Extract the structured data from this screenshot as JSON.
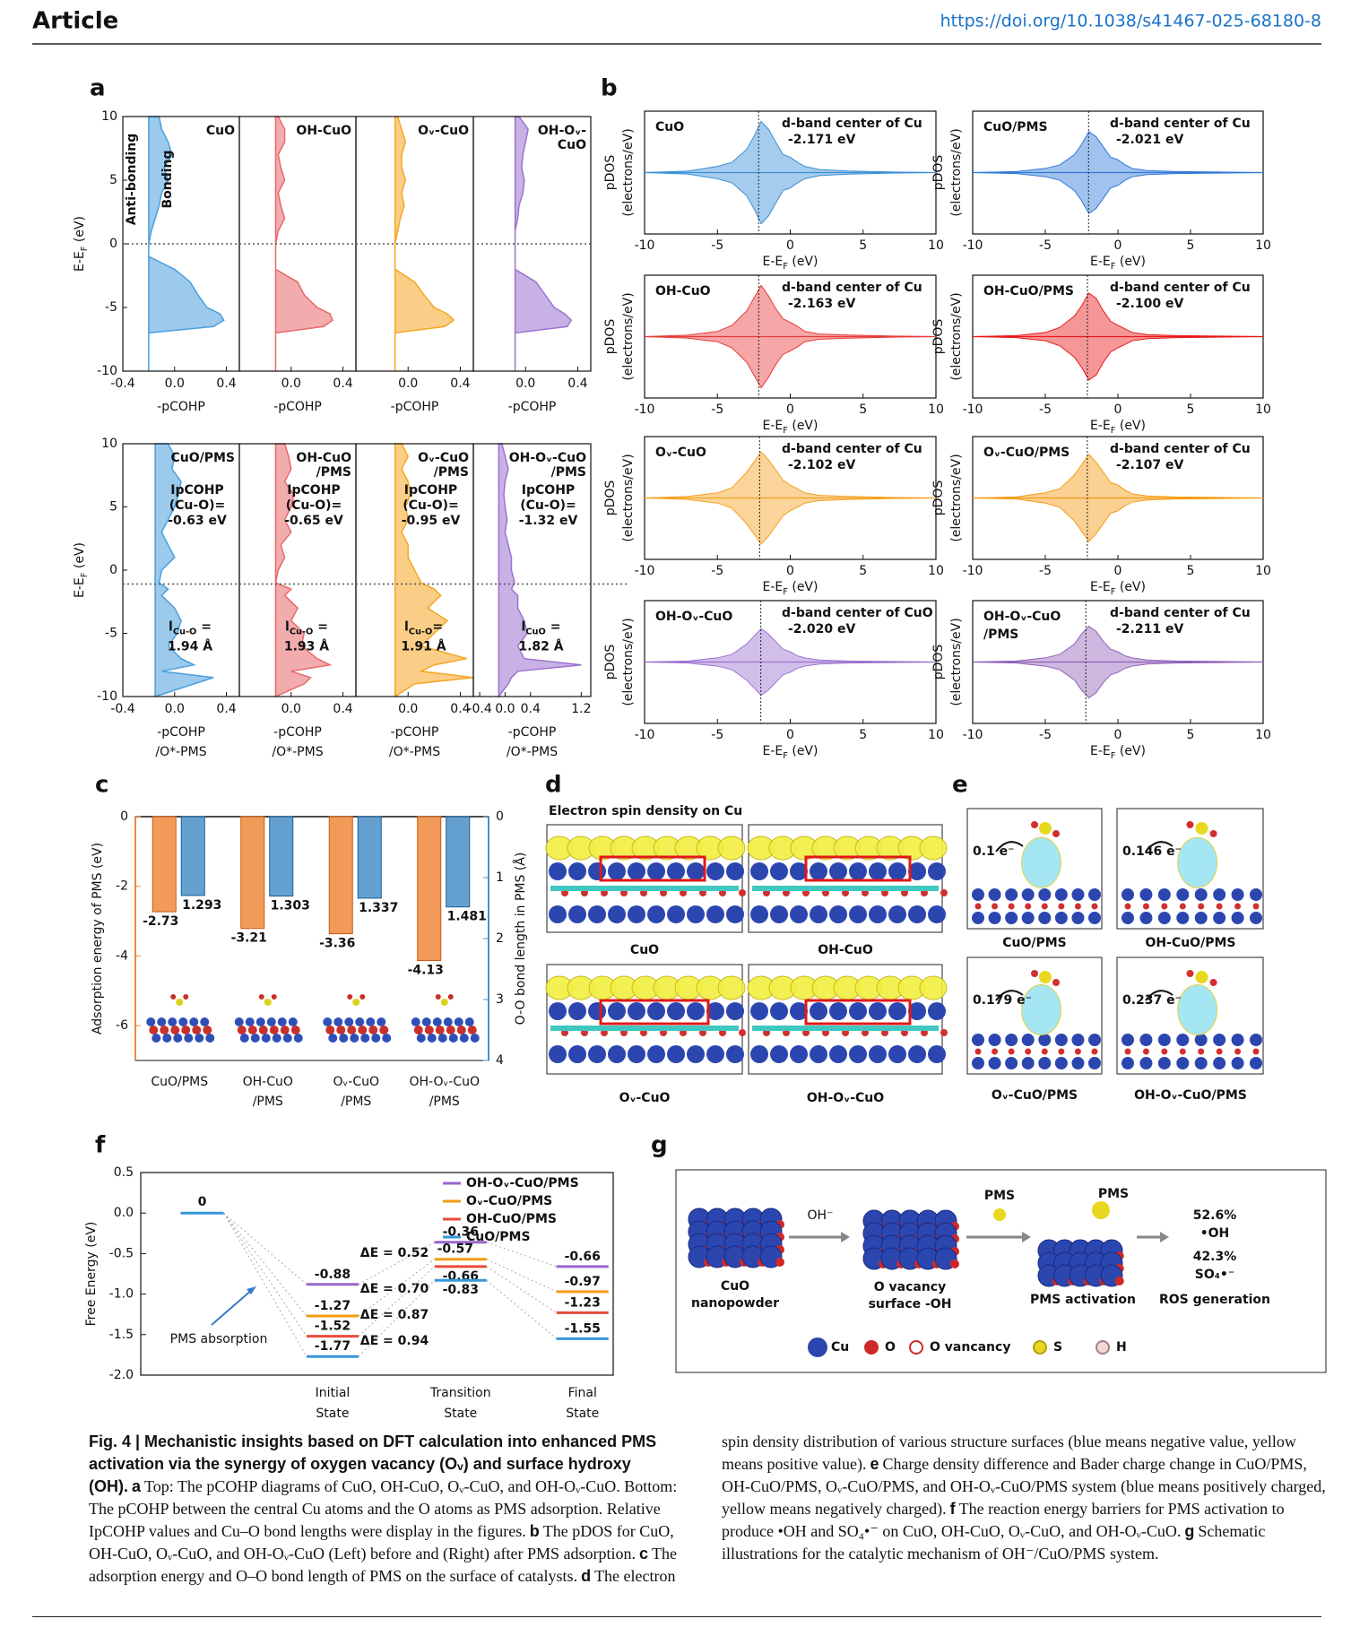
{
  "header": {
    "label": "Article",
    "doi": "https://doi.org/10.1038/s41467-025-68180-8"
  },
  "panel_labels": [
    "a",
    "b",
    "c",
    "d",
    "e",
    "f",
    "g"
  ],
  "chart_data": [
    {
      "type": "pcohp",
      "ylabel": {
        "text": "E-E",
        "sub": "F",
        "unit": " (eV)"
      },
      "ylim": [
        -10,
        10
      ],
      "yticks": [
        -10,
        -5,
        0,
        5,
        10
      ],
      "xlim": [
        -0.4,
        0.5
      ],
      "fermi": 0,
      "annotations": [
        "Anti-bonding",
        "Bonding"
      ],
      "y": [
        10,
        9,
        8,
        7,
        6,
        5,
        4,
        3,
        2,
        1,
        0,
        -1,
        -2,
        -3,
        -4,
        -5,
        -5.5,
        -6,
        -6.5,
        -7,
        -8,
        -9,
        -10
      ],
      "panels": [
        {
          "label": [
            "CuO"
          ],
          "color": "#4a9fdc",
          "xticks": [
            -0.4,
            {
              "value": 0,
              "label": "0.0"
            },
            0.4
          ],
          "xlabel": [
            "-pCOHP"
          ],
          "values": [
            -0.12,
            -0.1,
            -0.05,
            -0.02,
            -0.08,
            -0.05,
            -0.1,
            -0.12,
            -0.15,
            -0.18,
            -0.2,
            -0.2,
            0.0,
            0.12,
            0.18,
            0.25,
            0.35,
            0.38,
            0.3,
            -0.2,
            -0.2,
            -0.2,
            -0.2
          ]
        },
        {
          "label": [
            "OH-CuO"
          ],
          "color": "#e8686c",
          "xticks": [
            {
              "value": 0,
              "label": "0.0"
            },
            0.4
          ],
          "xlabel": [
            "-pCOHP"
          ],
          "values": [
            -0.1,
            -0.05,
            -0.05,
            -0.1,
            -0.08,
            -0.05,
            -0.1,
            -0.08,
            -0.05,
            -0.1,
            -0.12,
            -0.12,
            -0.12,
            0.05,
            0.1,
            0.2,
            0.3,
            0.32,
            0.25,
            -0.12,
            -0.12,
            -0.12,
            -0.12
          ]
        },
        {
          "label": [
            "Oᵥ-CuO"
          ],
          "color": "#f5a623",
          "xticks": [
            {
              "value": 0,
              "label": "0.0"
            },
            0.4
          ],
          "xlabel": [
            "-pCOHP"
          ],
          "values": [
            -0.08,
            -0.05,
            -0.02,
            -0.05,
            -0.05,
            -0.02,
            -0.05,
            -0.03,
            -0.06,
            -0.08,
            -0.1,
            -0.1,
            -0.1,
            0.05,
            0.12,
            0.2,
            0.3,
            0.35,
            0.28,
            -0.1,
            -0.1,
            -0.1,
            -0.1
          ]
        },
        {
          "label": [
            "OH-Oᵥ-",
            "CuO"
          ],
          "color": "#9b72cf",
          "xticks": [
            {
              "value": 0,
              "label": "0.0"
            },
            0.4
          ],
          "xlabel": [
            "-pCOHP"
          ],
          "values": [
            -0.05,
            0.02,
            0.0,
            -0.02,
            -0.03,
            -0.01,
            -0.02,
            -0.05,
            -0.06,
            -0.08,
            -0.08,
            -0.08,
            -0.08,
            0.08,
            0.15,
            0.22,
            0.3,
            0.35,
            0.32,
            -0.08,
            -0.08,
            -0.08,
            -0.08
          ]
        }
      ]
    },
    {
      "type": "pcohp",
      "ylabel": {
        "text": "E-E",
        "sub": "F",
        "unit": " (eV)"
      },
      "ylim": [
        -10,
        10
      ],
      "yticks": [
        -10,
        -5,
        0,
        5,
        10
      ],
      "xlim": [
        -0.4,
        0.5
      ],
      "fermi": -1.1,
      "y": [
        10,
        9,
        8,
        7,
        6,
        5,
        4,
        3,
        2,
        1,
        0,
        -1,
        -1.5,
        -2,
        -3,
        -4,
        -5,
        -6,
        -7,
        -7.5,
        -8,
        -8.5,
        -9,
        -10
      ],
      "panels": [
        {
          "label": [
            "CuO/PMS"
          ],
          "color": "#4a9fdc",
          "xticks": [
            -0.4,
            {
              "value": 0,
              "label": "0.0"
            },
            0.4
          ],
          "xlabel": [
            "-pCOHP",
            "/O*-PMS"
          ],
          "ipcohp_label": [
            "IpCOHP",
            "(Cu-O)="
          ],
          "ipcohp": -0.63,
          "ipcohp_value_label": "-0.63 eV",
          "bond_label": {
            "text": "l",
            "sub": "Cu-O",
            "unit": " ="
          },
          "bond": 1.94,
          "bond_value_label": "1.94 Å",
          "values": [
            -0.05,
            0.0,
            -0.02,
            0.05,
            0.03,
            0.0,
            -0.05,
            -0.1,
            -0.05,
            0.0,
            -0.1,
            -0.12,
            -0.05,
            -0.1,
            0.0,
            0.05,
            0.02,
            -0.05,
            0.05,
            0.15,
            -0.1,
            0.3,
            0.15,
            -0.15
          ]
        },
        {
          "label": [
            "OH-CuO",
            "/PMS"
          ],
          "color": "#e8686c",
          "xticks": [
            {
              "value": 0,
              "label": "0.0"
            },
            0.4
          ],
          "xlabel": [
            "-pCOHP",
            "/O*-PMS"
          ],
          "ipcohp_label": [
            "IpCOHP",
            "(Cu-O)="
          ],
          "ipcohp": -0.65,
          "ipcohp_value_label": "-0.65 eV",
          "bond_label": {
            "text": "l",
            "sub": "Cu-O",
            "unit": " ="
          },
          "bond": 1.93,
          "bond_value_label": "1.93 Å",
          "values": [
            -0.05,
            -0.02,
            0.0,
            -0.05,
            0.02,
            0.0,
            -0.05,
            0.0,
            -0.08,
            -0.05,
            -0.1,
            -0.12,
            0.0,
            -0.05,
            0.05,
            0.0,
            0.1,
            0.08,
            0.2,
            0.3,
            0.0,
            0.15,
            0.1,
            -0.12
          ]
        },
        {
          "label": [
            "Oᵥ-CuO",
            "/PMS"
          ],
          "color": "#f5a623",
          "xticks": [
            {
              "value": 0,
              "label": "0.0"
            },
            0.4
          ],
          "xlabel": [
            "-pCOHP",
            "/O*-PMS"
          ],
          "ipcohp_label": [
            "IpCOHP",
            "(Cu-O)="
          ],
          "ipcohp": -0.95,
          "ipcohp_value_label": "-0.95 eV",
          "bond_label": {
            "text": "l",
            "sub": "Cu-O",
            "unit": "="
          },
          "bond": 1.91,
          "bond_value_label": "1.91 Å",
          "values": [
            -0.05,
            0.0,
            -0.05,
            0.0,
            0.02,
            -0.02,
            0.0,
            -0.05,
            0.0,
            0.0,
            0.05,
            0.1,
            0.2,
            0.25,
            0.15,
            0.3,
            0.2,
            0.1,
            0.45,
            0.2,
            0.1,
            0.5,
            0.05,
            -0.1
          ]
        },
        {
          "label": [
            "OH-Oᵥ-CuO",
            "/PMS"
          ],
          "color": "#9b72cf",
          "xlim": [
            -0.5,
            1.35
          ],
          "xticks": [
            -0.4,
            {
              "value": 0,
              "label": "0.0"
            },
            0.4,
            1.2
          ],
          "xlabel": [
            "-pCOHP",
            "/O*-PMS"
          ],
          "ipcohp_label": [
            "IpCOHP",
            "(Cu-O)="
          ],
          "ipcohp": -1.32,
          "ipcohp_value_label": "-1.32 eV",
          "bond_label": {
            "text": "l",
            "sub": "CuO",
            "unit": " ="
          },
          "bond": 1.82,
          "bond_value_label": "1.82 Å",
          "values": [
            -0.05,
            0.0,
            0.05,
            0.0,
            -0.02,
            0.0,
            0.03,
            0.0,
            0.05,
            0.1,
            0.1,
            0.15,
            0.1,
            0.2,
            0.2,
            0.3,
            0.35,
            0.2,
            0.3,
            1.2,
            0.2,
            0.1,
            0.05,
            -0.1
          ]
        }
      ]
    },
    {
      "type": "pdos",
      "xlim": [
        -10,
        10
      ],
      "xticks": [
        -10,
        -5,
        0,
        5,
        10
      ],
      "ylim": [
        -1.2,
        1.2
      ],
      "ylabel": [
        "pDOS",
        "(electrons/eV)"
      ],
      "xlabel": {
        "text": "E-E",
        "sub": "F",
        "unit": " (eV)"
      },
      "x": [
        -10,
        -7,
        -5,
        -4,
        -3,
        -2.5,
        -2,
        -1.5,
        -1,
        -0.5,
        0,
        0.5,
        1,
        2,
        4,
        7,
        10
      ],
      "plots": [
        {
          "label": [
            "CuO"
          ],
          "color": "#3a8fd6",
          "d_label": "d-band center of Cu",
          "d_center": -2.171,
          "d_center_label": "-2.171 eV",
          "values": [
            0,
            0.03,
            0.12,
            0.2,
            0.45,
            0.7,
            1.0,
            0.85,
            0.6,
            0.35,
            0.3,
            0.2,
            0.12,
            0.06,
            0.03,
            0.01,
            0
          ]
        },
        {
          "label": [
            "CuO/PMS"
          ],
          "color": "#2f78d8",
          "d_label": "d-band center of Cu",
          "d_center": -2.021,
          "d_center_label": "-2.021 eV",
          "values": [
            0,
            0.02,
            0.08,
            0.15,
            0.35,
            0.55,
            0.8,
            0.7,
            0.5,
            0.3,
            0.25,
            0.15,
            0.08,
            0.04,
            0.02,
            0.01,
            0
          ]
        },
        {
          "label": [
            "OH-CuO"
          ],
          "color": "#e83a3a",
          "d_label": "d-band center of Cu",
          "d_center": -2.163,
          "d_center_label": "-2.163 eV",
          "values": [
            0,
            0.03,
            0.1,
            0.22,
            0.5,
            0.75,
            1.0,
            0.8,
            0.55,
            0.35,
            0.28,
            0.2,
            0.1,
            0.05,
            0.03,
            0.01,
            0
          ]
        },
        {
          "label": [
            "OH-CuO/PMS"
          ],
          "color": "#e81818",
          "d_label": "d-band center of Cu",
          "d_center": -2.1,
          "d_center_label": "-2.100 eV",
          "values": [
            0,
            0.02,
            0.08,
            0.18,
            0.4,
            0.6,
            0.85,
            0.75,
            0.5,
            0.3,
            0.22,
            0.15,
            0.08,
            0.04,
            0.02,
            0.01,
            0
          ]
        },
        {
          "label": [
            "Oᵥ-CuO"
          ],
          "color": "#f5a020",
          "d_label": "d-band center of Cu",
          "d_center": -2.102,
          "d_center_label": "-2.102 eV",
          "values": [
            0,
            0.03,
            0.1,
            0.2,
            0.5,
            0.7,
            0.9,
            0.75,
            0.55,
            0.35,
            0.25,
            0.18,
            0.1,
            0.05,
            0.03,
            0.01,
            0
          ]
        },
        {
          "label": [
            "Oᵥ-CuO/PMS"
          ],
          "color": "#f59a10",
          "d_label": "d-band center of Cu",
          "d_center": -2.107,
          "d_center_label": "-2.107 eV",
          "values": [
            0,
            0.02,
            0.1,
            0.18,
            0.45,
            0.65,
            0.85,
            0.7,
            0.5,
            0.3,
            0.25,
            0.15,
            0.08,
            0.04,
            0.02,
            0.01,
            0
          ]
        },
        {
          "label": [
            "OH-Oᵥ-CuO"
          ],
          "color": "#9b72cf",
          "d_label": "d-band center of CuO",
          "d_center": -2.02,
          "d_center_label": "-2.020 eV",
          "values": [
            0,
            0.02,
            0.08,
            0.15,
            0.35,
            0.5,
            0.65,
            0.55,
            0.4,
            0.25,
            0.2,
            0.12,
            0.08,
            0.04,
            0.02,
            0.01,
            0
          ]
        },
        {
          "label": [
            "OH-Oᵥ-CuO",
            "/PMS"
          ],
          "color": "#9060b8",
          "d_label": "d-band center of Cu",
          "d_center": -2.211,
          "d_center_label": "-2.211 eV",
          "values": [
            0,
            0.02,
            0.08,
            0.15,
            0.35,
            0.55,
            0.7,
            0.6,
            0.4,
            0.25,
            0.2,
            0.12,
            0.08,
            0.04,
            0.02,
            0.01,
            0
          ]
        }
      ]
    },
    {
      "type": "bar",
      "ylabel": "Adsorption energy of PMS (eV)",
      "y2label": "O-O bond length in PMS (Å)",
      "ylim": [
        -7,
        0
      ],
      "yticks": [
        0,
        -2,
        -4,
        -6
      ],
      "y2lim": [
        0,
        4
      ],
      "y2ticks": [
        0,
        1,
        2,
        3,
        4
      ],
      "y2_inverted": true,
      "categories": [
        [
          "CuO/PMS"
        ],
        [
          "OH-CuO",
          "/PMS"
        ],
        [
          "Oᵥ-CuO",
          "/PMS"
        ],
        [
          "OH-Oᵥ-CuO",
          "/PMS"
        ]
      ],
      "series": [
        {
          "color": "#f08a3c",
          "values": [
            -2.73,
            -3.21,
            -3.36,
            -4.13
          ]
        },
        {
          "color": "#4a90c8",
          "axis": "y2",
          "values": [
            1.293,
            1.303,
            1.337,
            1.481
          ]
        }
      ]
    },
    {
      "type": "energy_diagram",
      "ylabel": "Free Energy (eV)",
      "ylim": [
        -2,
        0.5
      ],
      "yticks": [
        {
          "value": -2,
          "label": "-2.0"
        },
        -1.5,
        {
          "value": -1,
          "label": "-1.0"
        },
        -0.5,
        {
          "value": 0,
          "label": "0.0"
        },
        0.5
      ],
      "start": 0,
      "categories": [
        [
          "Initial",
          "State"
        ],
        [
          "Transition",
          "State"
        ],
        [
          "Final",
          "State"
        ]
      ],
      "legend": "upper right",
      "annotation": "PMS absorption",
      "series": [
        {
          "name": "OH-Oᵥ-CuO/PMS",
          "color": "#9966cc",
          "values": [
            -0.88,
            -0.36,
            -0.66
          ],
          "delta_e": 0.52,
          "delta_e_label": "ΔE = 0.52"
        },
        {
          "name": "Oᵥ-CuO/PMS",
          "color": "#f39c12",
          "values": [
            -1.27,
            -0.57,
            -0.97
          ],
          "delta_e": 0.7,
          "delta_e_label": "ΔE = 0.70"
        },
        {
          "name": "OH-CuO/PMS",
          "color": "#e74c3c",
          "values": [
            -1.52,
            -0.66,
            -1.23
          ],
          "delta_e": 0.87,
          "delta_e_label": "ΔE = 0.87"
        },
        {
          "name": "CuO/PMS",
          "color": "#3498db",
          "values": [
            -1.77,
            -0.83,
            -1.55
          ],
          "delta_e": 0.94,
          "delta_e_label": "ΔE = 0.94"
        }
      ]
    }
  ],
  "panel_d": {
    "title": "Electron spin density on Cu",
    "captions": [
      "CuO",
      "OH-CuO",
      "Oᵥ-CuO",
      "OH-Oᵥ-CuO"
    ]
  },
  "panel_e": {
    "captions": [
      "CuO/PMS",
      "OH-CuO/PMS",
      "Oᵥ-CuO/PMS",
      "OH-Oᵥ-CuO/PMS"
    ],
    "charges": [
      "0.1 e⁻",
      "0.146 e⁻",
      "0.179 e⁻",
      "0.237 e⁻"
    ]
  },
  "panel_g": {
    "cuo": [
      "CuO",
      "nanopowder"
    ],
    "oh": "OH⁻",
    "vacancy": [
      "O vacancy",
      "surface -OH"
    ],
    "pms": [
      "PMS",
      "PMS"
    ],
    "activation": "PMS activation",
    "oh_pct": "52.6%",
    "oh_radical": "•OH",
    "so4_pct": "42.3%",
    "so4_radical": "SO₄•⁻",
    "ros": "ROS generation",
    "legend": [
      "Cu",
      "O",
      "O vancancy",
      "S",
      "H"
    ]
  },
  "caption": {
    "title": "Fig. 4 | Mechanistic insights based on DFT calculation into enhanced PMS activation via the synergy of oxygen vacancy (Oᵥ) and surface hydroxy (OH).",
    "body": [
      {
        "ref": "a",
        "text": "Top: The pCOHP diagrams of CuO, OH-CuO, Oᵥ-CuO, and OH-Oᵥ-CuO. Bottom: The pCOHP between the central Cu atoms and the O atoms as PMS adsorption. Relative IpCOHP values and Cu–O bond lengths were display in the figures."
      },
      {
        "ref": "b",
        "text": "The pDOS for CuO, OH-CuO, Oᵥ-CuO, and OH-Oᵥ-CuO (Left) before and (Right) after PMS adsorption."
      },
      {
        "ref": "c",
        "text": "The adsorption energy and O–O bond length of PMS on the surface of catalysts."
      },
      {
        "ref": "d",
        "text": "The electron spin density distribution of various structure surfaces (blue means negative value, yellow means positive value)."
      },
      {
        "ref": "e",
        "text": "Charge density difference and Bader charge change in CuO/PMS, OH-CuO/PMS, Oᵥ-CuO/PMS, and OH-Oᵥ-CuO/PMS system (blue means positively charged, yellow means negatively charged)."
      },
      {
        "ref": "f",
        "text": "The reaction energy barriers for PMS activation to produce •OH and SO₄•⁻ on CuO, OH-CuO, Oᵥ-CuO, and OH-Oᵥ-CuO."
      },
      {
        "ref": "g",
        "text": "Schematic illustrations for the catalytic mechanism of OH⁻/CuO/PMS system."
      }
    ]
  }
}
